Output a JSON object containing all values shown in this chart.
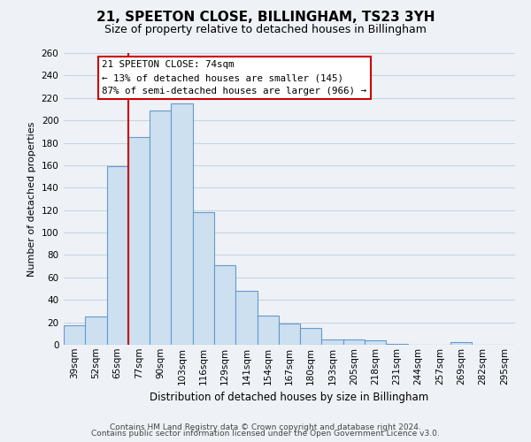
{
  "title": "21, SPEETON CLOSE, BILLINGHAM, TS23 3YH",
  "subtitle": "Size of property relative to detached houses in Billingham",
  "xlabel": "Distribution of detached houses by size in Billingham",
  "ylabel": "Number of detached properties",
  "bar_labels": [
    "39sqm",
    "52sqm",
    "65sqm",
    "77sqm",
    "90sqm",
    "103sqm",
    "116sqm",
    "129sqm",
    "141sqm",
    "154sqm",
    "167sqm",
    "180sqm",
    "193sqm",
    "205sqm",
    "218sqm",
    "231sqm",
    "244sqm",
    "257sqm",
    "269sqm",
    "282sqm",
    "295sqm"
  ],
  "bar_values": [
    17,
    25,
    159,
    185,
    209,
    215,
    118,
    71,
    48,
    26,
    19,
    15,
    5,
    5,
    4,
    1,
    0,
    0,
    2,
    0,
    0
  ],
  "bar_color": "#cce0f0",
  "bar_edge_color": "#6699cc",
  "vline_color": "#cc0000",
  "vline_pos": 2.5,
  "ylim": [
    0,
    260
  ],
  "yticks": [
    0,
    20,
    40,
    60,
    80,
    100,
    120,
    140,
    160,
    180,
    200,
    220,
    240,
    260
  ],
  "annotation_title": "21 SPEETON CLOSE: 74sqm",
  "annotation_line1": "← 13% of detached houses are smaller (145)",
  "annotation_line2": "87% of semi-detached houses are larger (966) →",
  "annotation_box_color": "#ffffff",
  "annotation_box_edge": "#cc0000",
  "footer_line1": "Contains HM Land Registry data © Crown copyright and database right 2024.",
  "footer_line2": "Contains public sector information licensed under the Open Government Licence v3.0.",
  "background_color": "#eef2f7",
  "grid_color": "#c8d4e0",
  "title_fontsize": 11,
  "subtitle_fontsize": 9,
  "axis_label_fontsize": 8,
  "tick_fontsize": 7.5,
  "footer_fontsize": 6.5
}
